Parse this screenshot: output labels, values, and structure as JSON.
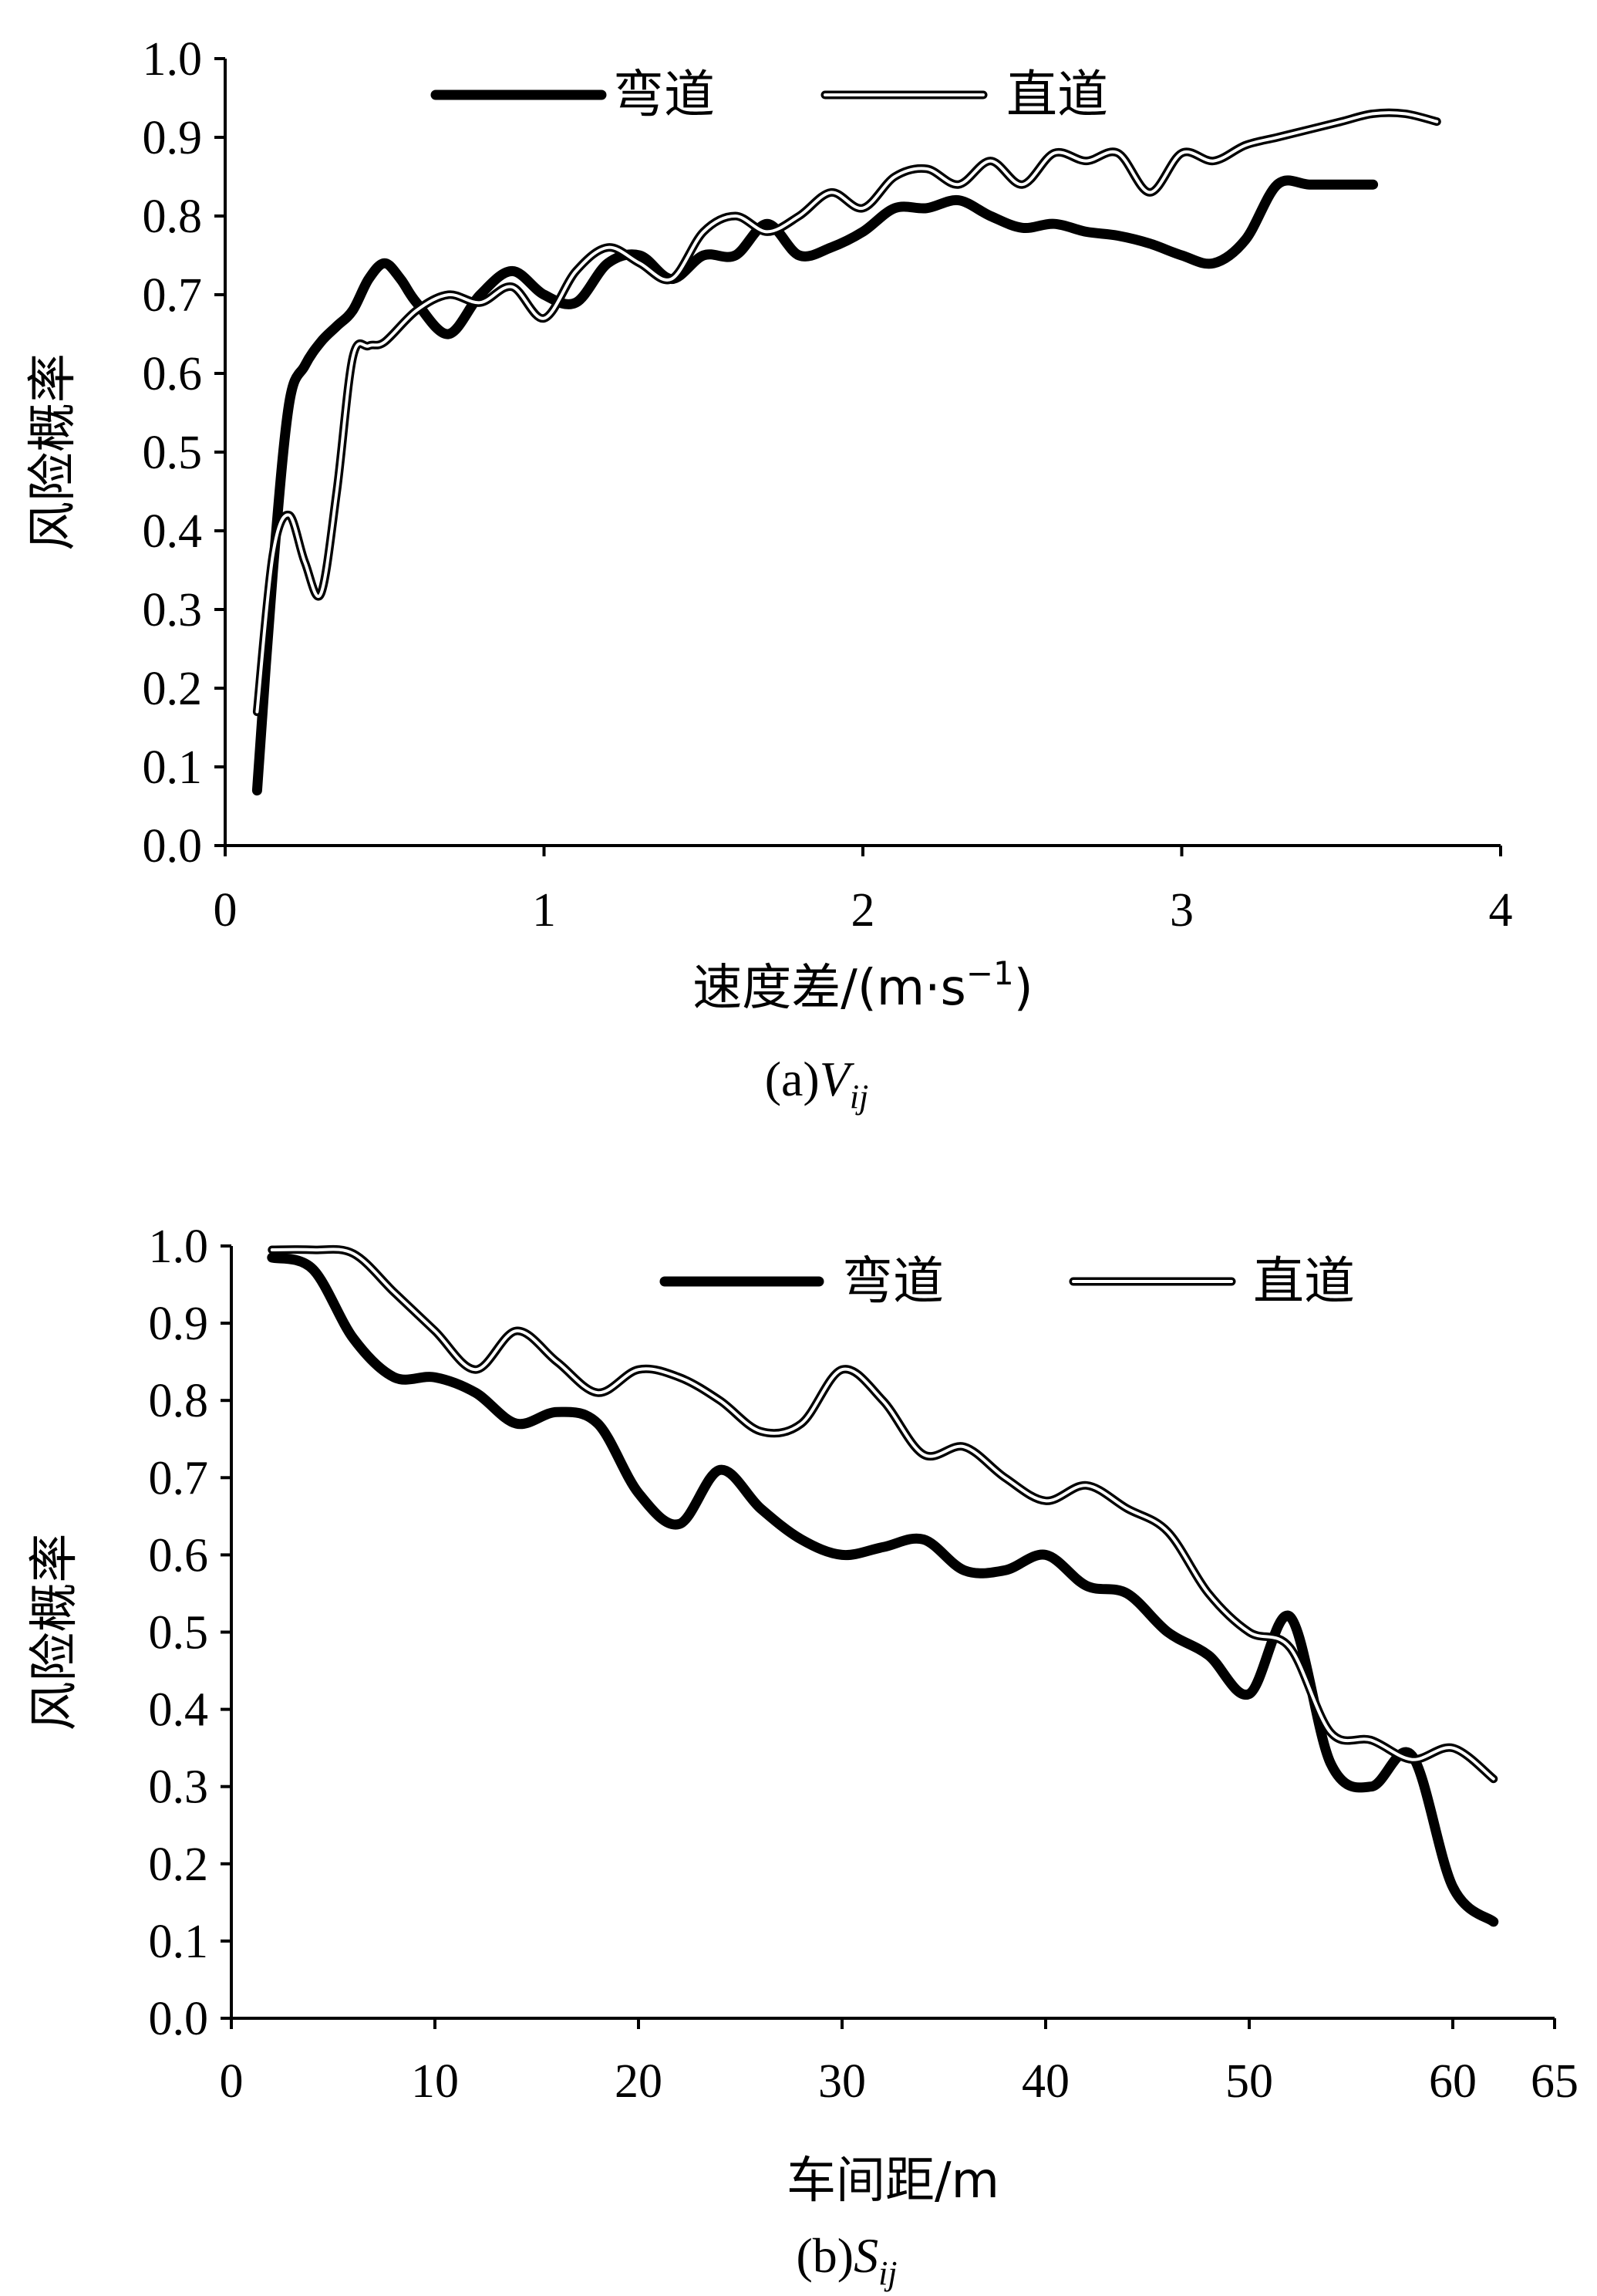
{
  "chart_data": [
    {
      "type": "line",
      "xlabel": "速度差/(m·s",
      "xlabel_sup": "−1",
      "xlabel_close": ")",
      "ylabel": "风险概率",
      "caption_prefix": "(a)",
      "caption_var": "V",
      "caption_sub": "ij",
      "xlim": [
        0,
        4
      ],
      "ylim": [
        0,
        1
      ],
      "xticks": [
        "0",
        "1",
        "2",
        "3",
        "4"
      ],
      "yticks": [
        "0.0",
        "0.1",
        "0.2",
        "0.3",
        "0.4",
        "0.5",
        "0.6",
        "0.7",
        "0.8",
        "0.9",
        "1.0"
      ],
      "legend_position": "top",
      "series": [
        {
          "name": "弯道",
          "style": "thick",
          "x": [
            0.1,
            0.15,
            0.2,
            0.25,
            0.3,
            0.35,
            0.4,
            0.45,
            0.5,
            0.55,
            0.6,
            0.7,
            0.8,
            0.9,
            1.0,
            1.1,
            1.2,
            1.3,
            1.4,
            1.5,
            1.6,
            1.7,
            1.8,
            1.9,
            2.0,
            2.1,
            2.2,
            2.3,
            2.4,
            2.5,
            2.6,
            2.7,
            2.8,
            2.9,
            3.0,
            3.1,
            3.2,
            3.3,
            3.4,
            3.5,
            3.6
          ],
          "y": [
            0.07,
            0.35,
            0.56,
            0.61,
            0.64,
            0.66,
            0.68,
            0.72,
            0.74,
            0.72,
            0.69,
            0.65,
            0.7,
            0.73,
            0.7,
            0.69,
            0.74,
            0.75,
            0.72,
            0.75,
            0.75,
            0.79,
            0.75,
            0.76,
            0.78,
            0.81,
            0.81,
            0.82,
            0.8,
            0.785,
            0.79,
            0.78,
            0.775,
            0.765,
            0.75,
            0.74,
            0.77,
            0.84,
            0.84,
            0.84,
            0.84
          ]
        },
        {
          "name": "直道",
          "style": "double",
          "x": [
            0.1,
            0.15,
            0.2,
            0.25,
            0.3,
            0.35,
            0.4,
            0.45,
            0.5,
            0.6,
            0.7,
            0.8,
            0.9,
            1.0,
            1.1,
            1.2,
            1.3,
            1.4,
            1.5,
            1.6,
            1.7,
            1.8,
            1.9,
            2.0,
            2.1,
            2.2,
            2.3,
            2.4,
            2.5,
            2.6,
            2.7,
            2.8,
            2.9,
            3.0,
            3.1,
            3.2,
            3.3,
            3.4,
            3.5,
            3.6,
            3.7,
            3.8
          ],
          "y": [
            0.17,
            0.37,
            0.42,
            0.36,
            0.32,
            0.45,
            0.62,
            0.635,
            0.64,
            0.68,
            0.7,
            0.69,
            0.71,
            0.67,
            0.73,
            0.76,
            0.74,
            0.72,
            0.78,
            0.8,
            0.78,
            0.8,
            0.83,
            0.81,
            0.85,
            0.86,
            0.84,
            0.87,
            0.84,
            0.88,
            0.87,
            0.88,
            0.83,
            0.88,
            0.87,
            0.89,
            0.9,
            0.91,
            0.92,
            0.93,
            0.93,
            0.92
          ]
        }
      ]
    },
    {
      "type": "line",
      "xlabel": "车间距/m",
      "ylabel": "风险概率",
      "caption_prefix": "(b)",
      "caption_var": "S",
      "caption_sub": "ij",
      "xlim": [
        0,
        65
      ],
      "ylim": [
        0,
        1
      ],
      "xticks": [
        "0",
        "10",
        "20",
        "30",
        "40",
        "50",
        "60",
        "65"
      ],
      "xtick_values": [
        0,
        10,
        20,
        30,
        40,
        50,
        60,
        65
      ],
      "yticks": [
        "0.0",
        "0.1",
        "0.2",
        "0.3",
        "0.4",
        "0.5",
        "0.6",
        "0.7",
        "0.8",
        "0.9",
        "1.0"
      ],
      "legend_position": "top",
      "series": [
        {
          "name": "弯道",
          "style": "thick",
          "x": [
            2,
            4,
            6,
            8,
            10,
            12,
            14,
            16,
            18,
            20,
            22,
            24,
            26,
            28,
            30,
            32,
            34,
            36,
            38,
            40,
            42,
            44,
            46,
            48,
            50,
            52,
            54,
            56,
            58,
            60,
            62
          ],
          "y": [
            0.985,
            0.97,
            0.88,
            0.83,
            0.83,
            0.81,
            0.77,
            0.785,
            0.77,
            0.68,
            0.64,
            0.71,
            0.66,
            0.62,
            0.6,
            0.61,
            0.62,
            0.58,
            0.58,
            0.6,
            0.56,
            0.55,
            0.5,
            0.47,
            0.42,
            0.52,
            0.33,
            0.3,
            0.34,
            0.17,
            0.125
          ]
        },
        {
          "name": "直道",
          "style": "double",
          "x": [
            2,
            4,
            6,
            8,
            10,
            12,
            14,
            16,
            18,
            20,
            22,
            24,
            26,
            28,
            30,
            32,
            34,
            36,
            38,
            40,
            42,
            44,
            46,
            48,
            50,
            52,
            54,
            56,
            58,
            60,
            62
          ],
          "y": [
            0.995,
            0.995,
            0.99,
            0.94,
            0.89,
            0.84,
            0.89,
            0.85,
            0.81,
            0.84,
            0.83,
            0.8,
            0.76,
            0.77,
            0.84,
            0.8,
            0.73,
            0.74,
            0.7,
            0.67,
            0.69,
            0.66,
            0.63,
            0.55,
            0.5,
            0.48,
            0.37,
            0.36,
            0.335,
            0.35,
            0.31
          ]
        }
      ]
    }
  ]
}
